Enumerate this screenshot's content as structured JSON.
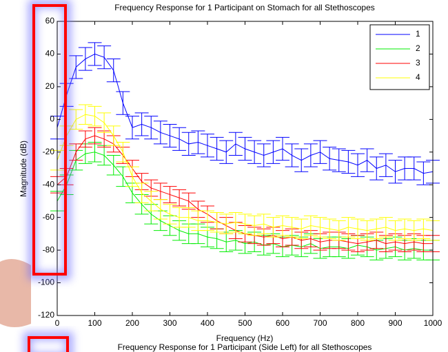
{
  "chart_data": [
    {
      "type": "line",
      "title": "Frequency Response for 1 Participant on Stomach for all Stethoscopes",
      "xlabel": "Frequency (Hz)",
      "ylabel": "Magnitude (dB)",
      "x": [
        0,
        25,
        50,
        75,
        100,
        125,
        150,
        175,
        200,
        225,
        250,
        275,
        300,
        325,
        350,
        375,
        400,
        425,
        450,
        475,
        500,
        525,
        550,
        575,
        600,
        625,
        650,
        675,
        700,
        725,
        750,
        775,
        800,
        825,
        850,
        875,
        900,
        925,
        950,
        975,
        1000
      ],
      "series": [
        {
          "name": "1",
          "color": "#0000ff",
          "error": 7,
          "values": [
            -5,
            15,
            32,
            37,
            40,
            38,
            30,
            10,
            -5,
            -3,
            -5,
            -8,
            -10,
            -12,
            -15,
            -14,
            -16,
            -18,
            -20,
            -15,
            -18,
            -20,
            -22,
            -20,
            -18,
            -22,
            -25,
            -22,
            -20,
            -24,
            -25,
            -26,
            -28,
            -25,
            -30,
            -28,
            -32,
            -30,
            -30,
            -33,
            -32
          ]
        },
        {
          "name": "2",
          "color": "#00ee00",
          "error": 6,
          "values": [
            -50,
            -40,
            -25,
            -21,
            -20,
            -22,
            -28,
            -35,
            -45,
            -52,
            -58,
            -62,
            -65,
            -68,
            -70,
            -70,
            -72,
            -73,
            -75,
            -74,
            -76,
            -75,
            -77,
            -76,
            -78,
            -77,
            -78,
            -76,
            -79,
            -78,
            -78,
            -79,
            -77,
            -78,
            -80,
            -79,
            -78,
            -80,
            -79,
            -80,
            -80
          ]
        },
        {
          "name": "3",
          "color": "#ff0000",
          "error": 5,
          "values": [
            -40,
            -35,
            -20,
            -12,
            -10,
            -12,
            -15,
            -22,
            -30,
            -38,
            -42,
            -44,
            -46,
            -48,
            -50,
            -55,
            -58,
            -62,
            -65,
            -68,
            -70,
            -71,
            -72,
            -71,
            -73,
            -72,
            -74,
            -73,
            -75,
            -74,
            -74,
            -75,
            -76,
            -75,
            -74,
            -76,
            -75,
            -76,
            -75,
            -76,
            -76
          ]
        },
        {
          "name": "4",
          "color": "#ffff00",
          "error": 6,
          "values": [
            -25,
            -10,
            0,
            3,
            2,
            -2,
            -10,
            -20,
            -35,
            -45,
            -50,
            -55,
            -58,
            -60,
            -60,
            -62,
            -62,
            -63,
            -64,
            -63,
            -64,
            -65,
            -64,
            -66,
            -65,
            -66,
            -67,
            -65,
            -66,
            -67,
            -68,
            -66,
            -67,
            -68,
            -67,
            -66,
            -68,
            -67,
            -68,
            -67,
            -68
          ]
        }
      ],
      "xlim": [
        0,
        1000
      ],
      "xticks": [
        0,
        100,
        200,
        300,
        400,
        500,
        600,
        700,
        800,
        900,
        1000
      ],
      "ylim": [
        -120,
        60
      ],
      "yticks": [
        -120,
        -100,
        -80,
        -60,
        -40,
        -20,
        0,
        20,
        40,
        60
      ],
      "legend": "upper right",
      "grid": false
    },
    {
      "title": "Frequency Response for 1 Participant (Side Left) for all Stethoscopes"
    }
  ]
}
